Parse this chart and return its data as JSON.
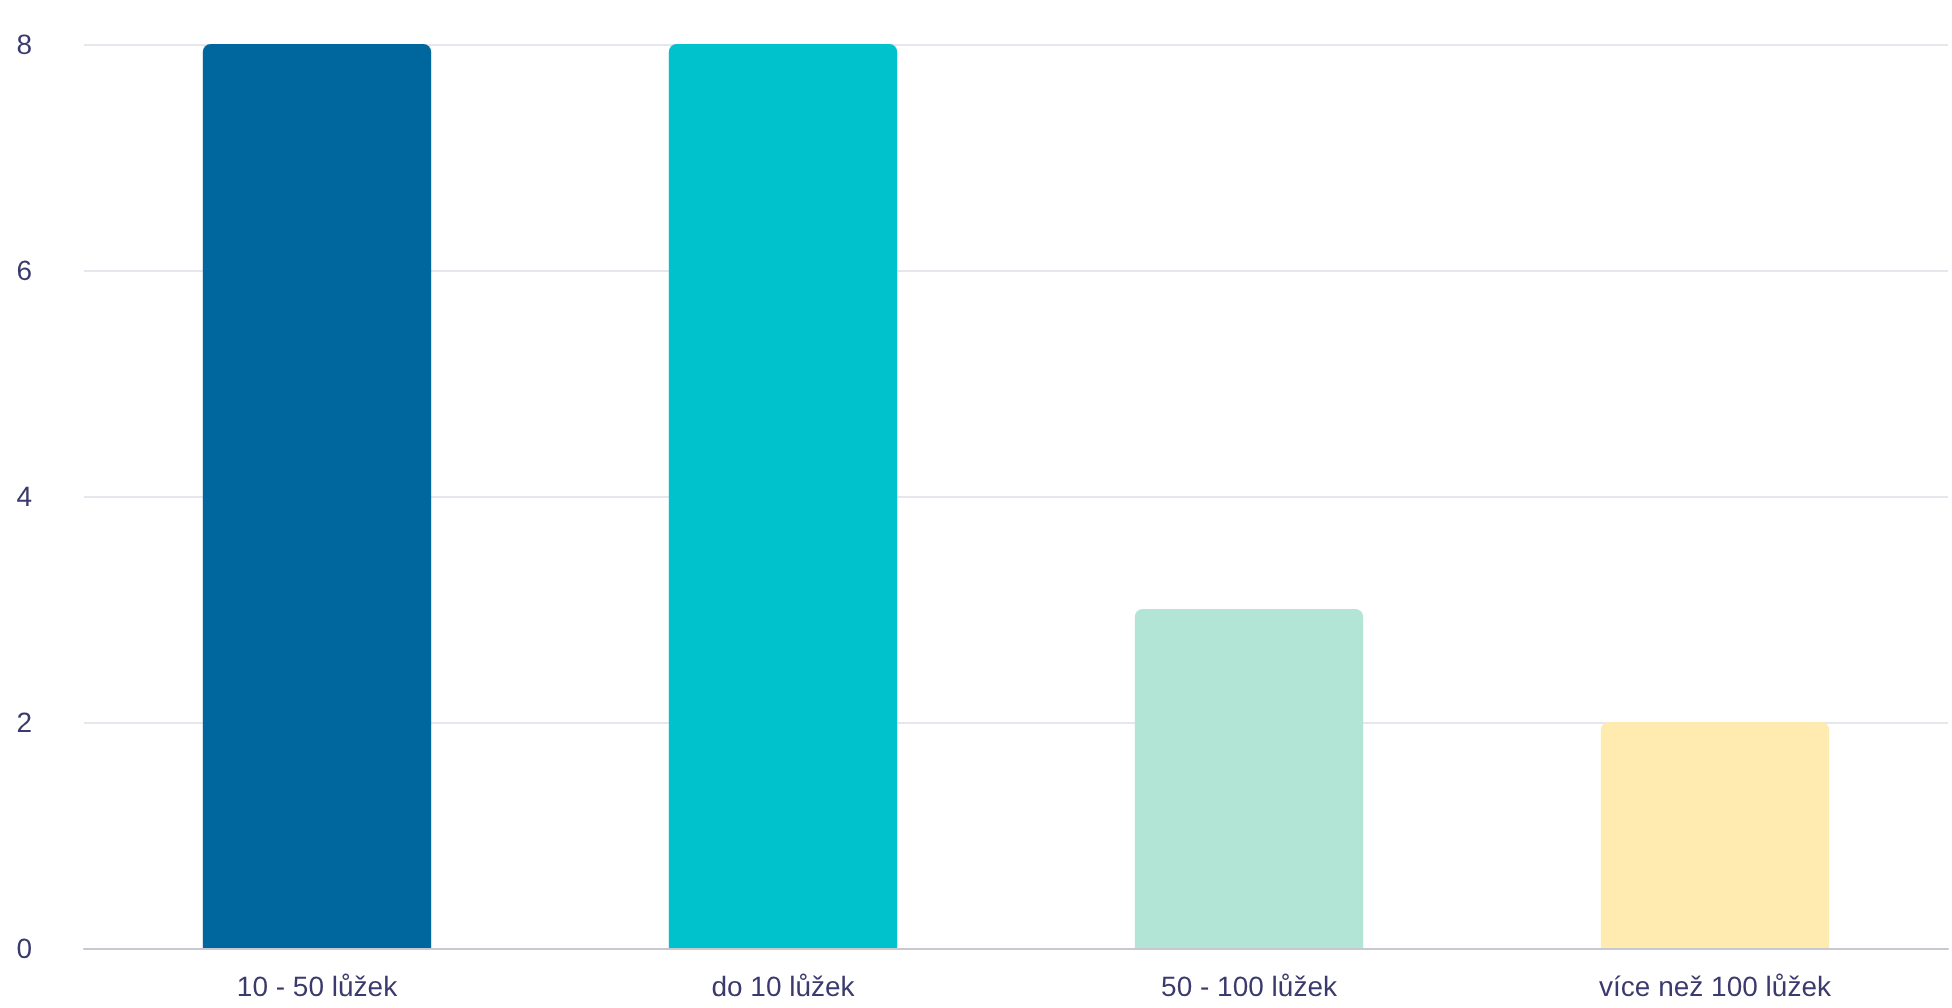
{
  "chart_data": {
    "type": "bar",
    "categories": [
      "10 - 50 lůžek",
      "do 10 lůžek",
      "50 - 100 lůžek",
      "více než 100 lůžek"
    ],
    "values": [
      8,
      8,
      3,
      2
    ],
    "colors": [
      "#00669e",
      "#00c2cc",
      "#b2e5d6",
      "#ffeab0"
    ],
    "ylim": [
      0,
      8
    ],
    "yticks": [
      0,
      2,
      4,
      6,
      8
    ],
    "grid": "y"
  }
}
